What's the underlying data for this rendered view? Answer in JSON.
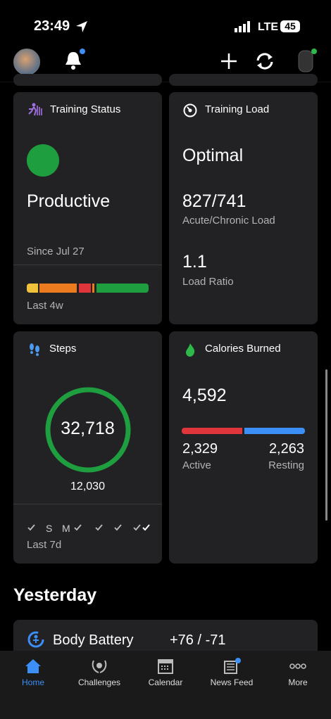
{
  "status_bar": {
    "time": "23:49",
    "network": "LTE",
    "battery": "45"
  },
  "cards": {
    "training_status": {
      "title": "Training Status",
      "status": "Productive",
      "since": "Since Jul 27",
      "period": "Last 4w"
    },
    "training_load": {
      "title": "Training Load",
      "status": "Optimal",
      "load": "827/741",
      "load_label": "Acute/Chronic Load",
      "ratio": "1.1",
      "ratio_label": "Load Ratio"
    },
    "steps": {
      "title": "Steps",
      "steps": "32,718",
      "goal": "12,030",
      "days": [
        "S",
        "M"
      ],
      "period": "Last 7d"
    },
    "calories": {
      "title": "Calories Burned",
      "total": "4,592",
      "active": "2,329",
      "active_label": "Active",
      "resting": "2,263",
      "resting_label": "Resting"
    }
  },
  "section": {
    "title": "Yesterday",
    "body_battery": {
      "label": "Body Battery",
      "value": "+76 / -71"
    }
  },
  "tabs": [
    "Home",
    "Challenges",
    "Calendar",
    "News Feed",
    "More"
  ]
}
